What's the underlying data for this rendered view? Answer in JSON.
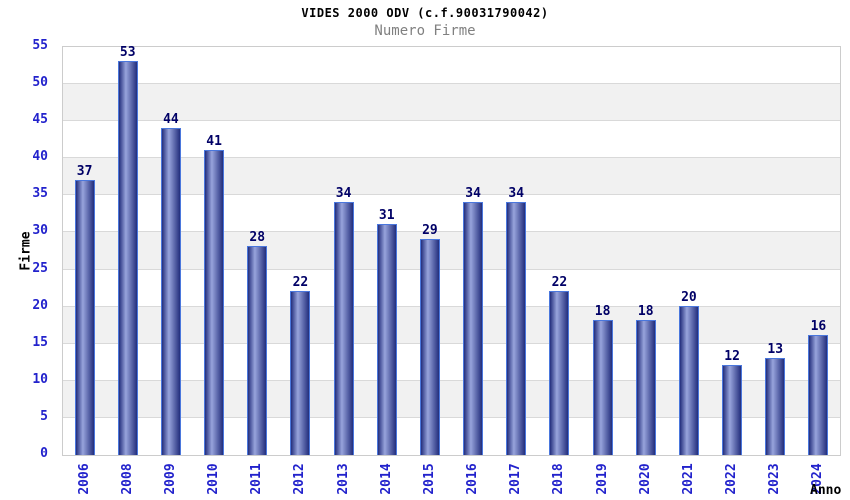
{
  "chart_data": {
    "type": "bar",
    "title": "VIDES 2000 ODV (c.f.90031790042)",
    "subtitle": "Numero Firme",
    "xlabel": "Anno",
    "ylabel": "Firme",
    "categories": [
      "2006",
      "2008",
      "2009",
      "2010",
      "2011",
      "2012",
      "2013",
      "2014",
      "2015",
      "2016",
      "2017",
      "2018",
      "2019",
      "2020",
      "2021",
      "2022",
      "2023",
      "2024"
    ],
    "values": [
      37,
      53,
      44,
      41,
      28,
      22,
      34,
      31,
      29,
      34,
      34,
      22,
      18,
      18,
      20,
      12,
      13,
      16
    ],
    "ylim": [
      0,
      55
    ],
    "ytick_step": 5,
    "grid": true,
    "legend_position": "none",
    "bar_value_labels_shown": true,
    "colors": {
      "title": "#000000",
      "subtitle": "#808080",
      "tick_label": "#2222cc",
      "value_label": "#000066",
      "axis_title": "#000000",
      "bar_dark": "#232e7c",
      "bar_light": "#98a4dc",
      "bar_border": "#4a77dd",
      "band": "#ffffff",
      "band_alt": "#f1f1f1",
      "gridline": "#d9d9d9",
      "plot_border": "#cccccc"
    }
  }
}
